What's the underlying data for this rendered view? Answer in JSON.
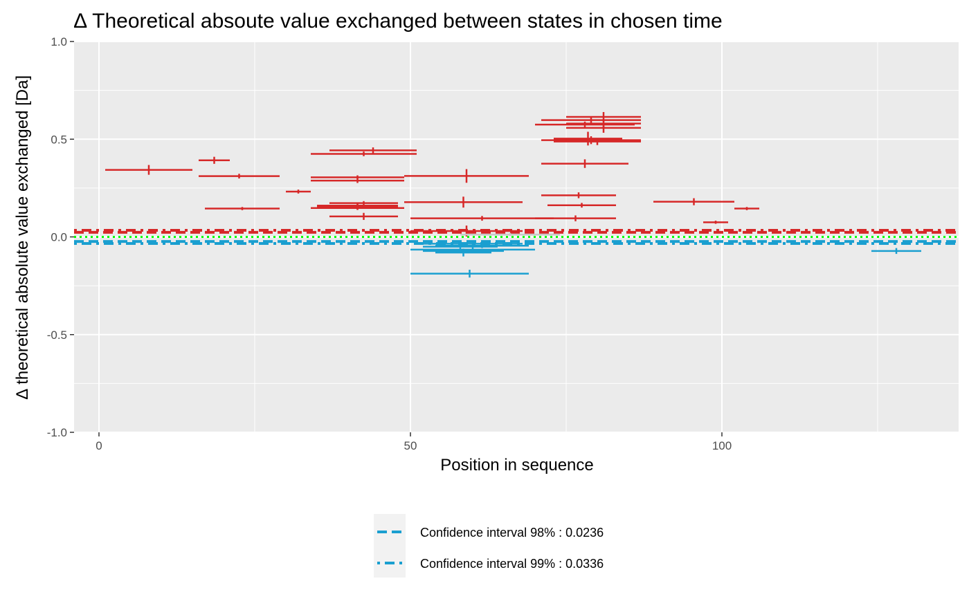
{
  "chart_data": {
    "type": "scatter",
    "title": "∆ Theoretical absoute value exchanged between states in chosen time",
    "xlabel": "Position in sequence",
    "ylabel": "∆ theoretical absolute value exchanged [Da]",
    "xlim": [
      -4,
      138
    ],
    "ylim": [
      -1.0,
      1.0
    ],
    "x_ticks": [
      0,
      50,
      100
    ],
    "x_tick_labels": [
      "0",
      "50",
      "100"
    ],
    "y_ticks": [
      -1.0,
      -0.5,
      0.0,
      0.5,
      1.0
    ],
    "y_tick_labels": [
      "-1.0",
      "-0.5",
      "0.0",
      "0.5",
      "1.0"
    ],
    "grid": true,
    "legend_position": "bottom",
    "colors": {
      "positive": "#d62828",
      "negative": "#1a9fd0",
      "neutral": "#c8c8c8",
      "zero_line": "#00ff00",
      "panel": "#ebebeb",
      "grid": "#ffffff"
    },
    "thresholds": [
      {
        "label": "Confidence interval 98% : 0.0236",
        "value": 0.0236,
        "style": "dashed"
      },
      {
        "label": "Confidence interval 99% : 0.0336",
        "value": 0.0336,
        "style": "dotdash"
      }
    ],
    "peptides": [
      {
        "start": 1,
        "end": 15,
        "value": 0.343,
        "err": 0.025
      },
      {
        "start": 16,
        "end": 21,
        "value": 0.392,
        "err": 0.018
      },
      {
        "start": 16,
        "end": 29,
        "value": 0.311,
        "err": 0.012
      },
      {
        "start": 17,
        "end": 29,
        "value": 0.145,
        "err": 0.008
      },
      {
        "start": 30,
        "end": 34,
        "value": 0.232,
        "err": 0.01
      },
      {
        "start": 34,
        "end": 51,
        "value": 0.425,
        "err": 0.012
      },
      {
        "start": 34,
        "end": 49,
        "value": 0.305,
        "err": 0.01
      },
      {
        "start": 34,
        "end": 49,
        "value": 0.288,
        "err": 0.012
      },
      {
        "start": 34,
        "end": 49,
        "value": 0.148,
        "err": 0.01
      },
      {
        "start": 35,
        "end": 48,
        "value": 0.16,
        "err": 0.01
      },
      {
        "start": 35,
        "end": 48,
        "value": 0.155,
        "err": 0.015
      },
      {
        "start": 37,
        "end": 48,
        "value": 0.173,
        "err": 0.01
      },
      {
        "start": 37,
        "end": 51,
        "value": 0.443,
        "err": 0.015
      },
      {
        "start": 37,
        "end": 48,
        "value": 0.105,
        "err": 0.018
      },
      {
        "start": 49,
        "end": 69,
        "value": 0.312,
        "err": 0.035
      },
      {
        "start": 49,
        "end": 68,
        "value": 0.178,
        "err": 0.028
      },
      {
        "start": 50,
        "end": 73,
        "value": 0.095,
        "err": 0.012
      },
      {
        "start": 50,
        "end": 68,
        "value": 0.03,
        "err": 0.028
      },
      {
        "start": 50,
        "end": 70,
        "value": -0.065,
        "err": 0.012
      },
      {
        "start": 52,
        "end": 68,
        "value": -0.035,
        "err": 0.01
      },
      {
        "start": 52,
        "end": 64,
        "value": -0.05,
        "err": 0.015
      },
      {
        "start": 52,
        "end": 65,
        "value": -0.072,
        "err": 0.01
      },
      {
        "start": 54,
        "end": 69,
        "value": -0.045,
        "err": 0.012
      },
      {
        "start": 54,
        "end": 63,
        "value": -0.08,
        "err": 0.02
      },
      {
        "start": 50,
        "end": 69,
        "value": -0.188,
        "err": 0.02
      },
      {
        "start": 58,
        "end": 74,
        "value": 0.012,
        "err": 0.008
      },
      {
        "start": 70,
        "end": 86,
        "value": 0.575,
        "err": 0.015
      },
      {
        "start": 71,
        "end": 87,
        "value": 0.598,
        "err": 0.015
      },
      {
        "start": 75,
        "end": 87,
        "value": 0.614,
        "err": 0.025
      },
      {
        "start": 75,
        "end": 87,
        "value": 0.58,
        "err": 0.02
      },
      {
        "start": 75,
        "end": 87,
        "value": 0.558,
        "err": 0.025
      },
      {
        "start": 71,
        "end": 87,
        "value": 0.495,
        "err": 0.02
      },
      {
        "start": 73,
        "end": 87,
        "value": 0.488,
        "err": 0.018
      },
      {
        "start": 73,
        "end": 84,
        "value": 0.503,
        "err": 0.035
      },
      {
        "start": 71,
        "end": 85,
        "value": 0.375,
        "err": 0.022
      },
      {
        "start": 71,
        "end": 83,
        "value": 0.213,
        "err": 0.015
      },
      {
        "start": 72,
        "end": 83,
        "value": 0.162,
        "err": 0.012
      },
      {
        "start": 70,
        "end": 83,
        "value": 0.095,
        "err": 0.015
      },
      {
        "start": 89,
        "end": 102,
        "value": 0.18,
        "err": 0.018
      },
      {
        "start": 97,
        "end": 101,
        "value": 0.075,
        "err": 0.008
      },
      {
        "start": 102,
        "end": 106,
        "value": 0.145,
        "err": 0.008
      },
      {
        "start": 124,
        "end": 132,
        "value": -0.072,
        "err": 0.015
      }
    ]
  }
}
